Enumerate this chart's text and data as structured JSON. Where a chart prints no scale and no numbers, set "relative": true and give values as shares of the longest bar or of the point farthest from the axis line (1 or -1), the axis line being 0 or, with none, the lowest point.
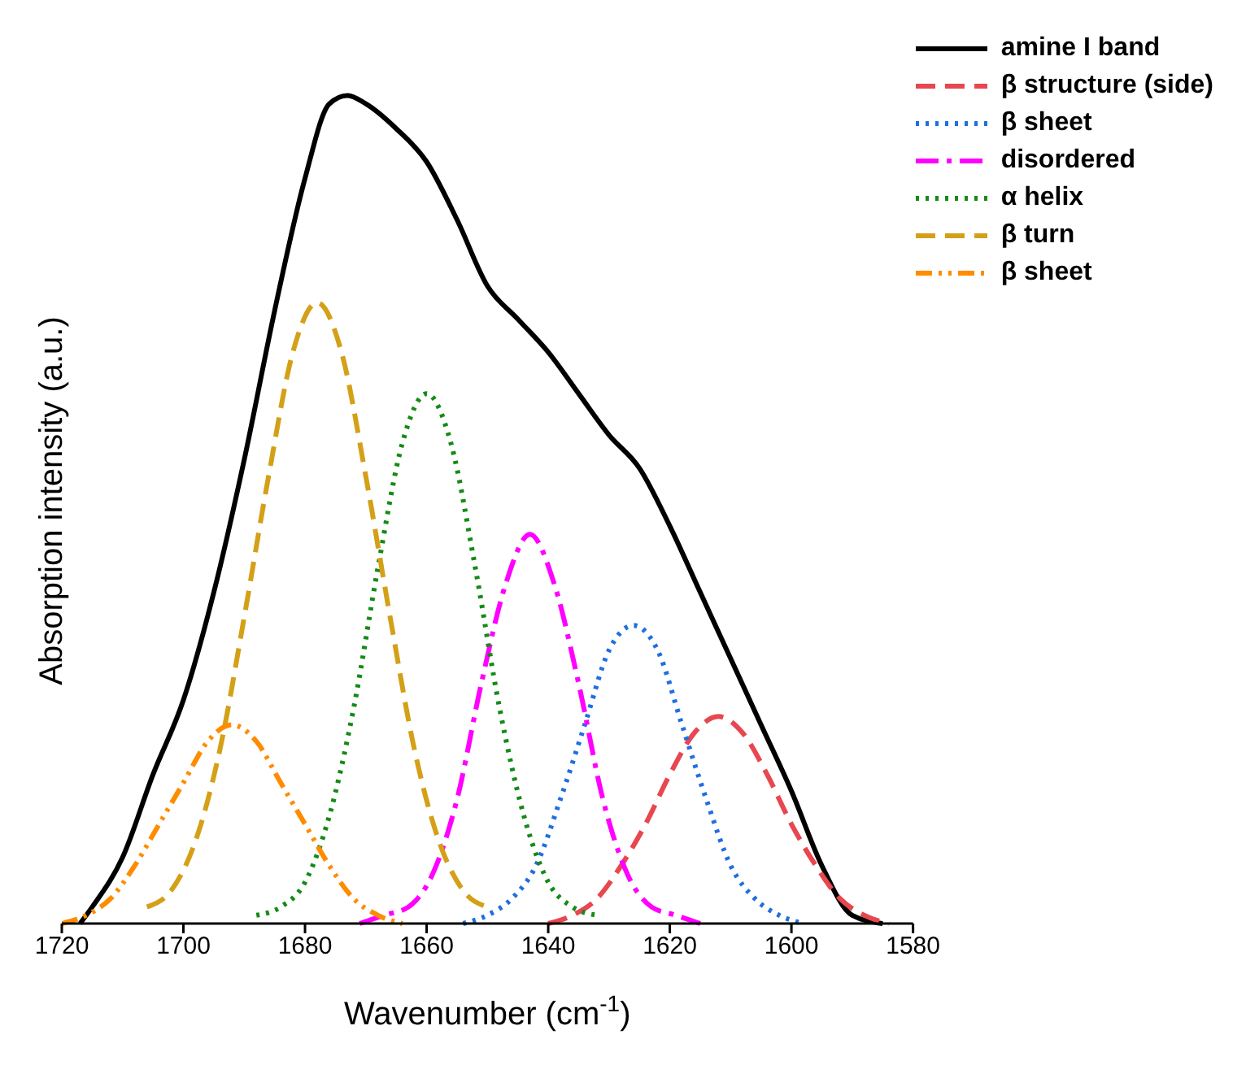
{
  "chart_data": {
    "type": "line",
    "xlabel": "Wavenumber (cm$^{-1}$)",
    "ylabel": "Absorption intensity (a.u.)",
    "relative": true,
    "xlim": [
      1720,
      1580
    ],
    "xticks": [
      1720,
      1700,
      1680,
      1660,
      1640,
      1620,
      1600,
      1580
    ],
    "tick_labels": "x",
    "legend": "top right",
    "grid": false,
    "marker": "none",
    "series": [
      {
        "name": "amine I band",
        "color": "#000000",
        "line_style": "solid",
        "x": [
          1717,
          1715,
          1710,
          1705,
          1700,
          1695,
          1690,
          1685,
          1680,
          1676,
          1673,
          1670,
          1665,
          1660,
          1655,
          1650,
          1645,
          1640,
          1635,
          1630,
          1625,
          1620,
          1615,
          1610,
          1605,
          1600,
          1595,
          1590,
          1585
        ],
        "values": [
          0,
          0.02,
          0.08,
          0.18,
          0.27,
          0.4,
          0.56,
          0.74,
          0.9,
          0.99,
          1,
          0.99,
          0.96,
          0.92,
          0.85,
          0.77,
          0.73,
          0.69,
          0.64,
          0.59,
          0.55,
          0.48,
          0.4,
          0.32,
          0.24,
          0.16,
          0.07,
          0.01,
          0
        ]
      },
      {
        "name": "β structure (side)",
        "color": "#e8474f",
        "line_style": "dashed",
        "x": [
          1640,
          1636,
          1632,
          1628,
          1624,
          1620,
          1616,
          1612,
          1608,
          1604,
          1600,
          1596,
          1592,
          1588,
          1584
        ],
        "values": [
          0,
          0.01,
          0.03,
          0.07,
          0.12,
          0.18,
          0.23,
          0.25,
          0.23,
          0.18,
          0.12,
          0.07,
          0.03,
          0.01,
          0
        ]
      },
      {
        "name": "β sheet",
        "color": "#1f6fe0",
        "line_style": "dotted",
        "x": [
          1654,
          1650,
          1646,
          1642,
          1638,
          1634,
          1630,
          1626,
          1622,
          1618,
          1614,
          1610,
          1606,
          1602,
          1598
        ],
        "values": [
          0,
          0.01,
          0.03,
          0.07,
          0.15,
          0.24,
          0.33,
          0.36,
          0.33,
          0.24,
          0.15,
          0.07,
          0.03,
          0.01,
          0
        ]
      },
      {
        "name": "disordered",
        "color": "#ff00ff",
        "line_style": "dashdot",
        "x": [
          1671,
          1667,
          1663,
          1659,
          1655,
          1651,
          1647,
          1643,
          1639,
          1635,
          1631,
          1627,
          1623,
          1619,
          1615
        ],
        "values": [
          0,
          0.01,
          0.02,
          0.06,
          0.15,
          0.29,
          0.41,
          0.47,
          0.41,
          0.29,
          0.15,
          0.06,
          0.02,
          0.01,
          0
        ]
      },
      {
        "name": "α helix",
        "color": "#168a16",
        "line_style": "dotted",
        "x": [
          1688,
          1684,
          1680,
          1676,
          1672,
          1668,
          1664,
          1660,
          1656,
          1652,
          1648,
          1644,
          1640,
          1636,
          1632
        ],
        "values": [
          0.01,
          0.02,
          0.05,
          0.13,
          0.26,
          0.43,
          0.58,
          0.64,
          0.58,
          0.43,
          0.26,
          0.13,
          0.05,
          0.02,
          0.01
        ]
      },
      {
        "name": "β turn",
        "color": "#d4a017",
        "line_style": "dashed",
        "x": [
          1706,
          1702,
          1698,
          1694,
          1690,
          1686,
          1682,
          1678,
          1674,
          1670,
          1666,
          1662,
          1658,
          1654,
          1650
        ],
        "values": [
          0.02,
          0.04,
          0.1,
          0.21,
          0.37,
          0.54,
          0.69,
          0.75,
          0.69,
          0.54,
          0.37,
          0.21,
          0.1,
          0.04,
          0.02
        ]
      },
      {
        "name": "β sheet",
        "color": "#ff8c00",
        "line_style": "dashdotdot",
        "x": [
          1720,
          1716,
          1712,
          1708,
          1704,
          1700,
          1696,
          1692,
          1688,
          1684,
          1680,
          1676,
          1672,
          1668,
          1664
        ],
        "values": [
          0,
          0.01,
          0.03,
          0.07,
          0.12,
          0.17,
          0.22,
          0.24,
          0.22,
          0.17,
          0.12,
          0.07,
          0.03,
          0.01,
          0
        ]
      }
    ]
  }
}
